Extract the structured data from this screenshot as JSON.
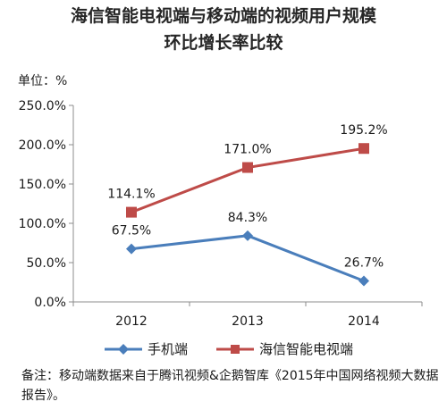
{
  "chart_data": {
    "type": "line",
    "title": "海信智能电视端与移动端的视频用户规模",
    "subtitle": "环比增长率比较",
    "unit_label": "单位：%",
    "categories": [
      "2012",
      "2013",
      "2014"
    ],
    "ylim": [
      0,
      250
    ],
    "y_ticks": [
      "0.0%",
      "50.0%",
      "100.0%",
      "150.0%",
      "200.0%",
      "250.0%"
    ],
    "y_tick_values": [
      0,
      50,
      100,
      150,
      200,
      250
    ],
    "grid": false,
    "legend_position": "bottom",
    "series": [
      {
        "name": "手机端",
        "values": [
          67.5,
          84.3,
          26.7
        ],
        "labels": [
          "67.5%",
          "84.3%",
          "26.7%"
        ],
        "color": "#4a7ebb",
        "marker": "diamond"
      },
      {
        "name": "海信智能电视端",
        "values": [
          114.1,
          171.0,
          195.2
        ],
        "labels": [
          "114.1%",
          "171.0%",
          "195.2%"
        ],
        "color": "#be4b48",
        "marker": "square"
      }
    ]
  },
  "note": "备注：移动端数据来自于腾讯视频&企鹅智库《2015年中国网络视频大数据报告》。"
}
